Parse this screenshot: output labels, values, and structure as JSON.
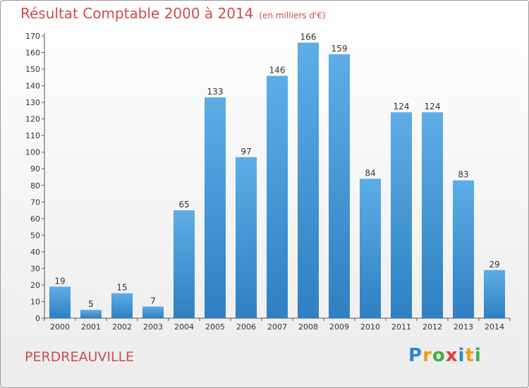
{
  "title": "Résultat Comptable 2000 à 2014",
  "unit": "(en milliers d'€)",
  "place": "PERDREAUVILLE",
  "logo": {
    "letters": [
      "P",
      "r",
      "o",
      "x",
      "i",
      "t",
      "i"
    ],
    "colors": [
      "#2e86d6",
      "#f39c12",
      "#3fae49",
      "#e23c3c",
      "#2e86d6",
      "#f39c12",
      "#3fae49"
    ]
  },
  "colors": {
    "bar_top": "#5dade6",
    "bar_bottom": "#2f80c2",
    "title": "#d24b4b"
  },
  "chart_data": {
    "type": "bar",
    "categories": [
      "2000",
      "2001",
      "2002",
      "2003",
      "2004",
      "2005",
      "2006",
      "2007",
      "2008",
      "2009",
      "2010",
      "2011",
      "2012",
      "2013",
      "2014"
    ],
    "values": [
      19,
      5,
      15,
      7,
      65,
      133,
      97,
      146,
      166,
      159,
      84,
      124,
      124,
      83,
      29
    ],
    "ylim": [
      0,
      170
    ],
    "yticks": [
      0,
      10,
      20,
      30,
      40,
      50,
      60,
      70,
      80,
      90,
      100,
      110,
      120,
      130,
      140,
      150,
      160,
      170
    ],
    "grid": false,
    "xlabel": "",
    "ylabel": ""
  }
}
